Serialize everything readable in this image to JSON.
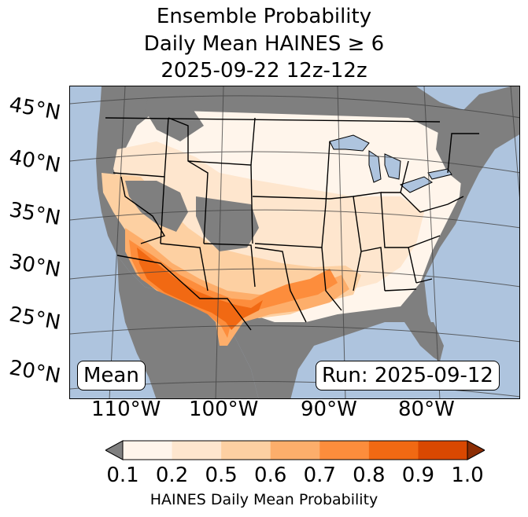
{
  "title": {
    "line1": "Ensemble Probability",
    "line2": "Daily Mean HAINES ≥ 6",
    "line3": "2025-09-22 12z-12z"
  },
  "lat_labels": [
    "45°N",
    "40°N",
    "35°N",
    "30°N",
    "25°N",
    "20°N"
  ],
  "lon_labels": [
    "110°W",
    "100°W",
    "90°W",
    "80°W"
  ],
  "stat_label": "Mean",
  "run_label": "Run: 2025-09-12",
  "colorbar": {
    "ticks": [
      "0.1",
      "0.2",
      "0.5",
      "0.6",
      "0.7",
      "0.8",
      "0.9",
      "1.0"
    ],
    "colors": [
      "#fff5eb",
      "#fee6ce",
      "#fdd0a2",
      "#fdae6b",
      "#fd8d3c",
      "#f16913",
      "#d94801"
    ],
    "under_color": "#808080",
    "over_color": "#8c2d04",
    "label": "HAINES Daily Mean Probability"
  },
  "colors": {
    "ocean": "#aec4de",
    "land_masked": "#7f7f7f"
  }
}
